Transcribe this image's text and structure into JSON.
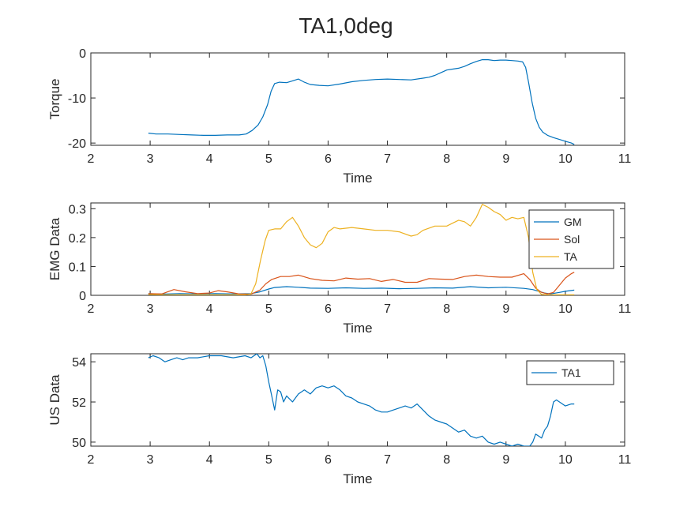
{
  "figure": {
    "title": "TA1,0deg"
  },
  "chart_data": [
    {
      "type": "line",
      "xlabel": "Time",
      "ylabel": "Torque",
      "xlim": [
        2,
        11
      ],
      "ylim": [
        -20.5,
        0
      ],
      "xticks": [
        2,
        3,
        4,
        5,
        6,
        7,
        8,
        9,
        10,
        11
      ],
      "yticks": [
        -20,
        -10,
        0
      ],
      "legend": null,
      "series": [
        {
          "color": "#0072BD",
          "x": [
            2.97,
            3.1,
            3.3,
            3.5,
            3.7,
            3.9,
            4.1,
            4.3,
            4.5,
            4.62,
            4.72,
            4.82,
            4.9,
            4.98,
            5.04,
            5.1,
            5.18,
            5.3,
            5.4,
            5.5,
            5.6,
            5.7,
            5.85,
            6.0,
            6.2,
            6.4,
            6.6,
            6.8,
            7.0,
            7.2,
            7.4,
            7.6,
            7.7,
            7.8,
            7.9,
            8.0,
            8.1,
            8.2,
            8.3,
            8.4,
            8.5,
            8.6,
            8.7,
            8.8,
            8.9,
            9.0,
            9.1,
            9.2,
            9.28,
            9.33,
            9.38,
            9.44,
            9.5,
            9.56,
            9.62,
            9.7,
            9.8,
            9.9,
            10.0,
            10.1,
            10.15
          ],
          "y": [
            -17.8,
            -18.0,
            -18.0,
            -18.1,
            -18.2,
            -18.3,
            -18.3,
            -18.2,
            -18.2,
            -18.0,
            -17.2,
            -16.0,
            -14.2,
            -11.5,
            -8.5,
            -6.8,
            -6.5,
            -6.6,
            -6.2,
            -5.8,
            -6.5,
            -7.0,
            -7.2,
            -7.3,
            -6.9,
            -6.4,
            -6.1,
            -5.9,
            -5.8,
            -5.9,
            -6.0,
            -5.6,
            -5.4,
            -5.0,
            -4.4,
            -3.8,
            -3.6,
            -3.4,
            -3.0,
            -2.4,
            -1.9,
            -1.5,
            -1.5,
            -1.7,
            -1.6,
            -1.6,
            -1.7,
            -1.8,
            -2.0,
            -3.2,
            -6.5,
            -11.0,
            -14.5,
            -16.5,
            -17.6,
            -18.3,
            -18.8,
            -19.2,
            -19.6,
            -20.0,
            -20.3
          ]
        }
      ]
    },
    {
      "type": "line",
      "xlabel": "Time",
      "ylabel": "EMG Data",
      "xlim": [
        2,
        11
      ],
      "ylim": [
        0,
        0.32
      ],
      "xticks": [
        2,
        3,
        4,
        5,
        6,
        7,
        8,
        9,
        10,
        11
      ],
      "yticks": [
        0,
        0.1,
        0.2,
        0.3
      ],
      "legend": "top-right",
      "series": [
        {
          "name": "GM",
          "color": "#0072BD",
          "x": [
            2.97,
            3.2,
            3.5,
            3.8,
            4.1,
            4.4,
            4.7,
            4.85,
            5.0,
            5.1,
            5.3,
            5.5,
            5.7,
            6.0,
            6.3,
            6.6,
            6.9,
            7.2,
            7.5,
            7.8,
            8.1,
            8.4,
            8.7,
            9.0,
            9.3,
            9.45,
            9.55,
            9.65,
            9.75,
            9.9,
            10.0,
            10.15
          ],
          "y": [
            0.006,
            0.004,
            0.006,
            0.005,
            0.006,
            0.005,
            0.006,
            0.012,
            0.022,
            0.027,
            0.03,
            0.028,
            0.025,
            0.024,
            0.026,
            0.024,
            0.025,
            0.023,
            0.024,
            0.026,
            0.025,
            0.03,
            0.026,
            0.028,
            0.024,
            0.02,
            0.014,
            0.008,
            0.005,
            0.01,
            0.014,
            0.018
          ]
        },
        {
          "name": "Sol",
          "color": "#D95319",
          "x": [
            2.97,
            3.2,
            3.4,
            3.6,
            3.8,
            4.0,
            4.15,
            4.3,
            4.5,
            4.7,
            4.85,
            4.95,
            5.05,
            5.2,
            5.35,
            5.5,
            5.7,
            5.9,
            6.1,
            6.3,
            6.5,
            6.7,
            6.9,
            7.1,
            7.3,
            7.5,
            7.7,
            7.9,
            8.1,
            8.3,
            8.5,
            8.7,
            8.9,
            9.1,
            9.3,
            9.4,
            9.5,
            9.6,
            9.7,
            9.8,
            9.9,
            10.0,
            10.1,
            10.15
          ],
          "y": [
            0.006,
            0.005,
            0.02,
            0.012,
            0.006,
            0.008,
            0.016,
            0.012,
            0.005,
            0.004,
            0.018,
            0.04,
            0.055,
            0.065,
            0.065,
            0.07,
            0.058,
            0.052,
            0.05,
            0.06,
            0.056,
            0.058,
            0.048,
            0.055,
            0.045,
            0.045,
            0.058,
            0.056,
            0.055,
            0.065,
            0.07,
            0.065,
            0.063,
            0.063,
            0.075,
            0.055,
            0.025,
            0.01,
            0.005,
            0.01,
            0.035,
            0.06,
            0.075,
            0.08
          ]
        },
        {
          "name": "TA",
          "color": "#EDB120",
          "x": [
            2.97,
            3.2,
            3.5,
            3.8,
            4.1,
            4.4,
            4.6,
            4.7,
            4.78,
            4.86,
            4.94,
            5.0,
            5.1,
            5.2,
            5.3,
            5.4,
            5.5,
            5.6,
            5.7,
            5.8,
            5.9,
            6.0,
            6.1,
            6.2,
            6.4,
            6.6,
            6.8,
            7.0,
            7.2,
            7.4,
            7.5,
            7.6,
            7.8,
            8.0,
            8.1,
            8.2,
            8.3,
            8.4,
            8.5,
            8.6,
            8.7,
            8.8,
            8.9,
            9.0,
            9.1,
            9.2,
            9.3,
            9.38,
            9.45,
            9.52,
            9.6,
            9.7,
            9.8,
            9.9,
            10.0,
            10.1,
            10.15
          ],
          "y": [
            0.003,
            0.002,
            0.002,
            0.002,
            0.002,
            0.002,
            0.002,
            0.005,
            0.04,
            0.12,
            0.19,
            0.225,
            0.23,
            0.23,
            0.255,
            0.27,
            0.24,
            0.2,
            0.175,
            0.165,
            0.18,
            0.22,
            0.235,
            0.23,
            0.235,
            0.23,
            0.225,
            0.225,
            0.22,
            0.205,
            0.21,
            0.225,
            0.24,
            0.24,
            0.25,
            0.26,
            0.255,
            0.24,
            0.27,
            0.315,
            0.305,
            0.29,
            0.28,
            0.26,
            0.27,
            0.265,
            0.27,
            0.2,
            0.08,
            0.02,
            0.003,
            0.002,
            0.002,
            0.002,
            0.002,
            0.002,
            0.002
          ]
        }
      ]
    },
    {
      "type": "line",
      "xlabel": "Time",
      "ylabel": "US Data",
      "xlim": [
        2,
        11
      ],
      "ylim": [
        49.8,
        54.4
      ],
      "xticks": [
        2,
        3,
        4,
        5,
        6,
        7,
        8,
        9,
        10,
        11
      ],
      "yticks": [
        50,
        52,
        54
      ],
      "legend": "top-right",
      "series": [
        {
          "name": "TA1",
          "color": "#0072BD",
          "x": [
            2.97,
            3.05,
            3.15,
            3.25,
            3.35,
            3.45,
            3.55,
            3.65,
            3.8,
            4.0,
            4.2,
            4.4,
            4.6,
            4.7,
            4.8,
            4.85,
            4.9,
            4.95,
            5.0,
            5.05,
            5.1,
            5.15,
            5.2,
            5.25,
            5.3,
            5.4,
            5.5,
            5.6,
            5.7,
            5.8,
            5.9,
            6.0,
            6.1,
            6.2,
            6.3,
            6.4,
            6.5,
            6.6,
            6.7,
            6.8,
            6.9,
            7.0,
            7.1,
            7.2,
            7.3,
            7.4,
            7.5,
            7.6,
            7.7,
            7.8,
            7.9,
            8.0,
            8.1,
            8.2,
            8.3,
            8.4,
            8.5,
            8.6,
            8.7,
            8.8,
            8.9,
            9.0,
            9.1,
            9.2,
            9.3,
            9.4,
            9.45,
            9.5,
            9.55,
            9.6,
            9.65,
            9.7,
            9.75,
            9.8,
            9.85,
            9.9,
            10.0,
            10.1,
            10.15
          ],
          "y": [
            54.2,
            54.3,
            54.2,
            54.0,
            54.1,
            54.2,
            54.1,
            54.2,
            54.2,
            54.3,
            54.3,
            54.2,
            54.3,
            54.2,
            54.4,
            54.2,
            54.3,
            53.8,
            53.0,
            52.3,
            51.6,
            52.6,
            52.5,
            52.0,
            52.3,
            52.0,
            52.4,
            52.6,
            52.4,
            52.7,
            52.8,
            52.7,
            52.8,
            52.6,
            52.3,
            52.2,
            52.0,
            51.9,
            51.8,
            51.6,
            51.5,
            51.5,
            51.6,
            51.7,
            51.8,
            51.7,
            51.9,
            51.6,
            51.3,
            51.1,
            51.0,
            50.9,
            50.7,
            50.5,
            50.6,
            50.3,
            50.2,
            50.3,
            50.0,
            49.9,
            50.0,
            49.9,
            49.8,
            49.9,
            49.8,
            49.8,
            50.0,
            50.4,
            50.3,
            50.2,
            50.6,
            50.8,
            51.3,
            52.0,
            52.1,
            52.0,
            51.8,
            51.9,
            51.9
          ]
        }
      ]
    }
  ]
}
